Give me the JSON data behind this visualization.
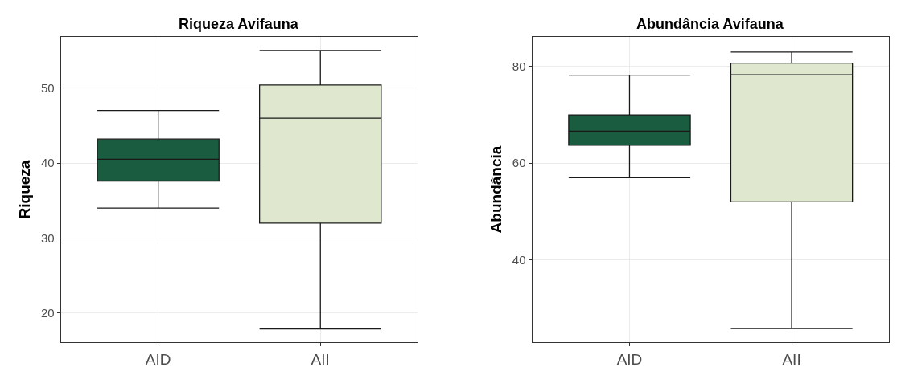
{
  "chart_data": [
    {
      "type": "box",
      "title": "Riqueza Avifauna",
      "ylabel": "Riqueza",
      "categories": [
        "AID",
        "AII"
      ],
      "colors": [
        "#1a5c40",
        "#dfe8cf"
      ],
      "boxes": [
        {
          "low": 34,
          "q1": 37.6,
          "median": 40.5,
          "q3": 43.2,
          "high": 47
        },
        {
          "low": 17.9,
          "q1": 32,
          "median": 46,
          "q3": 50.4,
          "high": 55
        }
      ],
      "ylim": [
        16.15,
        56.8
      ],
      "yticks": [
        20,
        30,
        40,
        50
      ],
      "grid": true
    },
    {
      "type": "box",
      "title": "Abundância Avifauna",
      "ylabel": "Abundância",
      "categories": [
        "AID",
        "AII"
      ],
      "colors": [
        "#1a5c40",
        "#dfe8cf"
      ],
      "boxes": [
        {
          "low": 57,
          "q1": 63.7,
          "median": 66.6,
          "q3": 70,
          "high": 78.2
        },
        {
          "low": 25.8,
          "q1": 52,
          "median": 78.3,
          "q3": 80.7,
          "high": 83
        }
      ],
      "ylim": [
        23,
        86.1
      ],
      "yticks": [
        40,
        60,
        80
      ],
      "grid": true
    }
  ]
}
